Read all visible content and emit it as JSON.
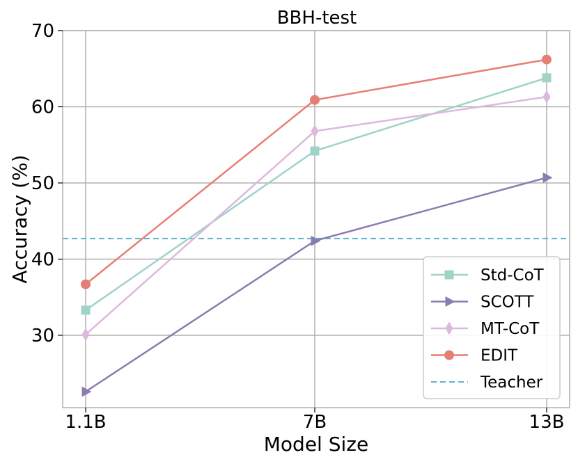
{
  "chart_data": {
    "type": "line",
    "title": "BBH-test",
    "xlabel": "Model Size",
    "ylabel": "Accuracy (%)",
    "categories": [
      "1.1B",
      "7B",
      "13B"
    ],
    "yticks": [
      30,
      40,
      50,
      60,
      70
    ],
    "ylim": [
      20.5,
      70
    ],
    "grid": true,
    "legend_position": "bottom-right",
    "series": [
      {
        "name": "Std-CoT",
        "values": [
          33.3,
          54.2,
          63.8
        ],
        "color": "#9fd3c7",
        "marker": "square"
      },
      {
        "name": "SCOTT",
        "values": [
          22.6,
          42.4,
          50.7
        ],
        "color": "#8b7caf",
        "marker": "triangle-right"
      },
      {
        "name": "MT-CoT",
        "values": [
          30.1,
          56.8,
          61.3
        ],
        "color": "#dcb8dd",
        "marker": "diamond"
      },
      {
        "name": "EDIT",
        "values": [
          36.7,
          60.9,
          66.2
        ],
        "color": "#e57f73",
        "marker": "circle"
      }
    ],
    "reference_lines": [
      {
        "name": "Teacher",
        "value": 42.7,
        "color": "#5bb3cc",
        "style": "dashed"
      }
    ]
  }
}
